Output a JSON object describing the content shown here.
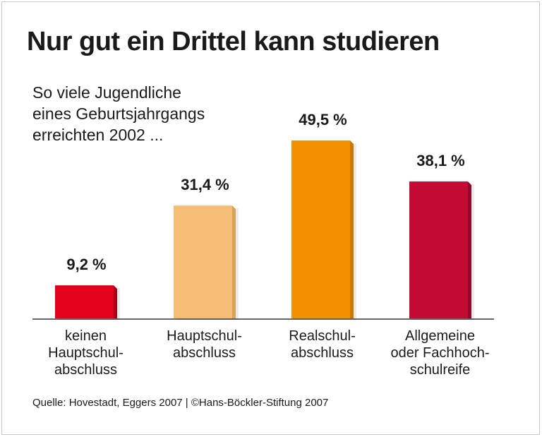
{
  "chart_data": {
    "type": "bar",
    "title": "Nur gut ein Drittel kann studieren",
    "subtitle": [
      "So viele Jugendliche",
      "eines Geburtsjahrgangs",
      "erreichten 2002 ..."
    ],
    "categories": [
      [
        "keinen",
        "Hauptschul-",
        "abschluss"
      ],
      [
        "Hauptschul-",
        "abschluss"
      ],
      [
        "Realschul-",
        "abschluss"
      ],
      [
        "Allgemeine",
        "oder Fachhoch-",
        "schulreife"
      ]
    ],
    "values": [
      9.2,
      31.4,
      49.5,
      38.1
    ],
    "value_labels": [
      "9,2 %",
      "31,4 %",
      "49,5 %",
      "38,1 %"
    ],
    "unit": "%",
    "colors": [
      "#e2001a",
      "#f7bd74",
      "#f29100",
      "#c30a32"
    ],
    "side_colors": [
      "#a8001a",
      "#d9a35c",
      "#c97800",
      "#8f0a2a"
    ],
    "ylim": [
      0,
      50
    ],
    "grid": false,
    "source": "Quelle: Hovestadt, Eggers 2007 | ©Hans-Böckler-Stiftung 2007"
  }
}
